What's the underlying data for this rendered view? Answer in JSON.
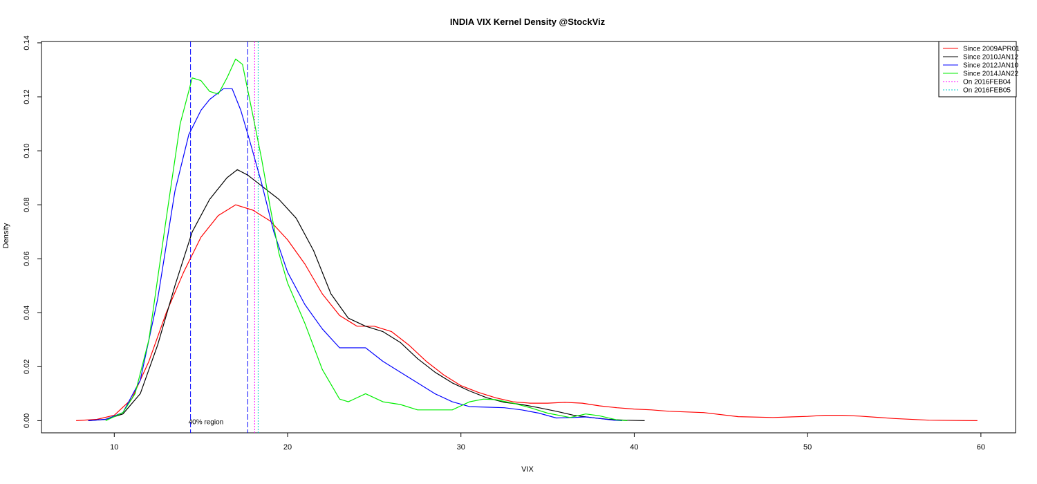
{
  "chart_data": {
    "type": "line",
    "title": "INDIA VIX Kernel Density @StockViz",
    "xlabel": "VIX",
    "ylabel": "Density",
    "xlim": [
      5.8,
      62.0
    ],
    "ylim": [
      -0.0045,
      0.1405
    ],
    "x_ticks": [
      10,
      20,
      30,
      40,
      50,
      60
    ],
    "x_tick_labels": [
      "10",
      "20",
      "30",
      "40",
      "50",
      "60"
    ],
    "y_ticks": [
      0.0,
      0.02,
      0.04,
      0.06,
      0.08,
      0.1,
      0.12,
      0.14
    ],
    "y_tick_labels": [
      "0.00",
      "0.02",
      "0.04",
      "0.06",
      "0.08",
      "0.10",
      "0.12",
      "0.14"
    ],
    "grid": false,
    "legend_position": "top-right",
    "series": [
      {
        "name": "Since 2009APR01",
        "color": "#ff0000",
        "style": "solid",
        "points": [
          [
            7.8,
            0.0
          ],
          [
            9,
            0.0005
          ],
          [
            10,
            0.002
          ],
          [
            11,
            0.008
          ],
          [
            12,
            0.022
          ],
          [
            13,
            0.04
          ],
          [
            14,
            0.055
          ],
          [
            15,
            0.068
          ],
          [
            16,
            0.076
          ],
          [
            17,
            0.08
          ],
          [
            18,
            0.078
          ],
          [
            19,
            0.074
          ],
          [
            20,
            0.067
          ],
          [
            21,
            0.058
          ],
          [
            22,
            0.047
          ],
          [
            23,
            0.039
          ],
          [
            24,
            0.035
          ],
          [
            25,
            0.035
          ],
          [
            26,
            0.033
          ],
          [
            27,
            0.028
          ],
          [
            28,
            0.022
          ],
          [
            29,
            0.017
          ],
          [
            30,
            0.013
          ],
          [
            31,
            0.0105
          ],
          [
            32,
            0.0085
          ],
          [
            33,
            0.007
          ],
          [
            34,
            0.0065
          ],
          [
            35,
            0.0065
          ],
          [
            36,
            0.0068
          ],
          [
            37,
            0.0065
          ],
          [
            38,
            0.0055
          ],
          [
            39,
            0.0048
          ],
          [
            40,
            0.0043
          ],
          [
            41,
            0.004
          ],
          [
            42,
            0.0035
          ],
          [
            44,
            0.003
          ],
          [
            46,
            0.0015
          ],
          [
            48,
            0.0012
          ],
          [
            50,
            0.0016
          ],
          [
            51,
            0.002
          ],
          [
            52,
            0.002
          ],
          [
            53,
            0.0017
          ],
          [
            55,
            0.0008
          ],
          [
            57,
            0.0002
          ],
          [
            59.8,
            0.0
          ]
        ]
      },
      {
        "name": "Since 2010JAN12",
        "color": "#000000",
        "style": "solid",
        "points": [
          [
            8.5,
            0.0
          ],
          [
            9.5,
            0.0005
          ],
          [
            10.5,
            0.0025
          ],
          [
            11.5,
            0.01
          ],
          [
            12.5,
            0.028
          ],
          [
            13.5,
            0.05
          ],
          [
            14.5,
            0.07
          ],
          [
            15.5,
            0.082
          ],
          [
            16.5,
            0.09
          ],
          [
            17.1,
            0.093
          ],
          [
            17.7,
            0.091
          ],
          [
            18.5,
            0.087
          ],
          [
            19.5,
            0.082
          ],
          [
            20.5,
            0.075
          ],
          [
            21.5,
            0.063
          ],
          [
            22.5,
            0.047
          ],
          [
            23.5,
            0.038
          ],
          [
            24.5,
            0.035
          ],
          [
            25.5,
            0.033
          ],
          [
            26.5,
            0.029
          ],
          [
            27.5,
            0.023
          ],
          [
            28.5,
            0.018
          ],
          [
            29.5,
            0.014
          ],
          [
            30.5,
            0.011
          ],
          [
            31.5,
            0.0085
          ],
          [
            32.5,
            0.0068
          ],
          [
            33.5,
            0.006
          ],
          [
            34.5,
            0.0048
          ],
          [
            35.5,
            0.0035
          ],
          [
            36.5,
            0.002
          ],
          [
            37.5,
            0.0012
          ],
          [
            38.5,
            0.0005
          ],
          [
            39.5,
            0.0002
          ],
          [
            40.6,
            0.0
          ]
        ]
      },
      {
        "name": "Since 2012JAN10",
        "color": "#0000ff",
        "style": "solid",
        "points": [
          [
            8.5,
            0.0
          ],
          [
            9.5,
            0.0005
          ],
          [
            10.5,
            0.003
          ],
          [
            11.5,
            0.015
          ],
          [
            12.5,
            0.045
          ],
          [
            13.5,
            0.085
          ],
          [
            14.3,
            0.106
          ],
          [
            15,
            0.115
          ],
          [
            15.5,
            0.119
          ],
          [
            16.3,
            0.123
          ],
          [
            16.8,
            0.123
          ],
          [
            17.3,
            0.115
          ],
          [
            17.8,
            0.104
          ],
          [
            18.5,
            0.088
          ],
          [
            19.2,
            0.07
          ],
          [
            20,
            0.055
          ],
          [
            21,
            0.043
          ],
          [
            22,
            0.034
          ],
          [
            23,
            0.027
          ],
          [
            24,
            0.027
          ],
          [
            24.5,
            0.027
          ],
          [
            25.5,
            0.022
          ],
          [
            26.5,
            0.018
          ],
          [
            27.5,
            0.014
          ],
          [
            28.5,
            0.01
          ],
          [
            29.5,
            0.007
          ],
          [
            30.5,
            0.0052
          ],
          [
            31.5,
            0.005
          ],
          [
            32.5,
            0.0048
          ],
          [
            33.5,
            0.004
          ],
          [
            34.5,
            0.0028
          ],
          [
            35.5,
            0.001
          ],
          [
            36.5,
            0.0012
          ],
          [
            37.2,
            0.0014
          ],
          [
            38,
            0.0008
          ],
          [
            38.8,
            0.0002
          ],
          [
            39.3,
            0.0
          ]
        ]
      },
      {
        "name": "Since 2014JAN22",
        "color": "#00ee00",
        "style": "solid",
        "points": [
          [
            9.5,
            0.0
          ],
          [
            10.5,
            0.003
          ],
          [
            11.2,
            0.01
          ],
          [
            12,
            0.03
          ],
          [
            13,
            0.075
          ],
          [
            13.8,
            0.11
          ],
          [
            14.5,
            0.127
          ],
          [
            15,
            0.126
          ],
          [
            15.5,
            0.122
          ],
          [
            16,
            0.121
          ],
          [
            16.5,
            0.127
          ],
          [
            17,
            0.134
          ],
          [
            17.4,
            0.132
          ],
          [
            18,
            0.113
          ],
          [
            18.5,
            0.097
          ],
          [
            19,
            0.079
          ],
          [
            19.5,
            0.062
          ],
          [
            20,
            0.051
          ],
          [
            21,
            0.036
          ],
          [
            22,
            0.019
          ],
          [
            23,
            0.008
          ],
          [
            23.5,
            0.007
          ],
          [
            24.5,
            0.01
          ],
          [
            25.5,
            0.007
          ],
          [
            26.5,
            0.006
          ],
          [
            27.5,
            0.004
          ],
          [
            28.5,
            0.004
          ],
          [
            29.5,
            0.004
          ],
          [
            30.5,
            0.007
          ],
          [
            31.3,
            0.008
          ],
          [
            32,
            0.0078
          ],
          [
            33,
            0.0065
          ],
          [
            34,
            0.0048
          ],
          [
            35,
            0.0028
          ],
          [
            36.3,
            0.0012
          ],
          [
            37.2,
            0.0025
          ],
          [
            38,
            0.0018
          ],
          [
            39,
            0.0003
          ],
          [
            39.6,
            0.0
          ]
        ]
      }
    ],
    "vertical_lines": [
      {
        "name": "40% region lower",
        "x": 14.4,
        "color": "#0000ff",
        "style": "longdash"
      },
      {
        "name": "40% region upper",
        "x": 17.7,
        "color": "#0000ff",
        "style": "longdash"
      },
      {
        "name": "On 2016FEB04",
        "x": 18.1,
        "color": "#ff00ff",
        "style": "dotted"
      },
      {
        "name": "On 2016FEB05",
        "x": 18.3,
        "color": "#00cccc",
        "style": "dotted"
      }
    ],
    "legend": [
      {
        "label": "Since 2009APR01",
        "color": "#ff0000",
        "style": "solid"
      },
      {
        "label": "Since 2010JAN12",
        "color": "#000000",
        "style": "solid"
      },
      {
        "label": "Since 2012JAN10",
        "color": "#0000ff",
        "style": "solid"
      },
      {
        "label": "Since 2014JAN22",
        "color": "#00ee00",
        "style": "solid"
      },
      {
        "label": "On 2016FEB04",
        "color": "#ff00ff",
        "style": "dotted"
      },
      {
        "label": "On 2016FEB05",
        "color": "#00cccc",
        "style": "dotted"
      }
    ],
    "annotations": [
      {
        "text": "40% region",
        "x": 14.4,
        "y": 0.0
      }
    ]
  }
}
